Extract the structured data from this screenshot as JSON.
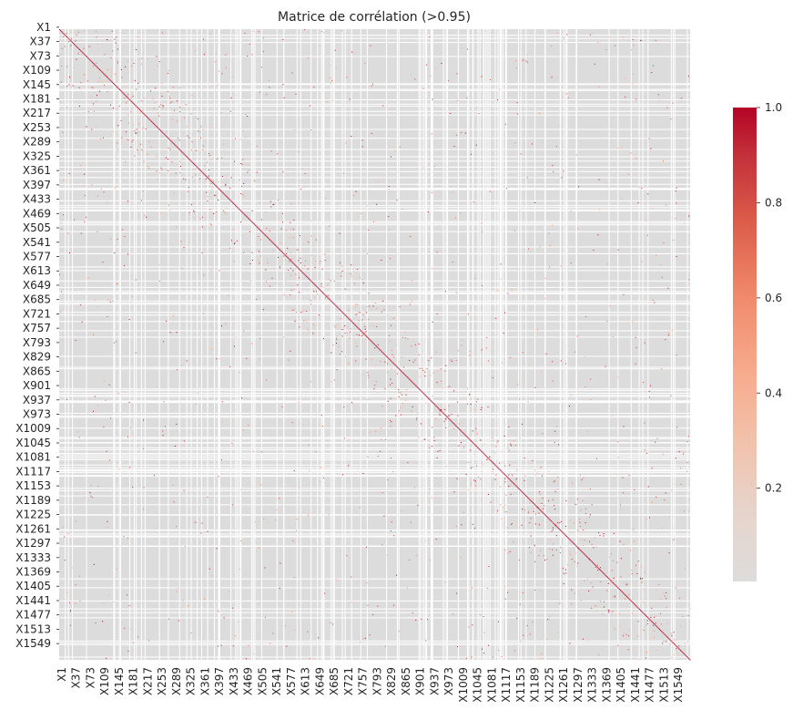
{
  "chart_data": {
    "type": "heatmap",
    "title": "Matrice de corrélation (>0.95)",
    "xlabel": "",
    "ylabel": "",
    "n_variables": 1573,
    "row_tick_labels": [
      "X1",
      "X37",
      "X73",
      "X109",
      "X145",
      "X181",
      "X217",
      "X253",
      "X289",
      "X325",
      "X361",
      "X397",
      "X433",
      "X469",
      "X505",
      "X541",
      "X577",
      "X613",
      "X649",
      "X685",
      "X721",
      "X757",
      "X793",
      "X829",
      "X865",
      "X901",
      "X937",
      "X973",
      "X1009",
      "X1045",
      "X1081",
      "X1117",
      "X1153",
      "X1189",
      "X1225",
      "X1261",
      "X1297",
      "X1333",
      "X1369",
      "X1405",
      "X1441",
      "X1477",
      "X1513",
      "X1549"
    ],
    "col_tick_labels": [
      "X1",
      "X37",
      "X73",
      "X109",
      "X145",
      "X181",
      "X217",
      "X253",
      "X289",
      "X325",
      "X361",
      "X397",
      "X433",
      "X469",
      "X505",
      "X541",
      "X577",
      "X613",
      "X649",
      "X685",
      "X721",
      "X757",
      "X793",
      "X829",
      "X865",
      "X901",
      "X937",
      "X973",
      "X1009",
      "X1045",
      "X1081",
      "X1117",
      "X1153",
      "X1189",
      "X1225",
      "X1261",
      "X1297",
      "X1333",
      "X1369",
      "X1405",
      "X1441",
      "X1477",
      "X1513",
      "X1549"
    ],
    "colorbar": {
      "min": 0.0,
      "max": 1.0,
      "ticks": [
        "0.2",
        "0.4",
        "0.6",
        "0.8",
        "1.0"
      ],
      "tick_values": [
        0.2,
        0.4,
        0.6,
        0.8,
        1.0
      ],
      "colormap": "coolwarm"
    },
    "colors": {
      "background_cell": "#dddcdc",
      "low": "#dddcdc",
      "mid": "#f4a383",
      "high": "#b40426",
      "grid_gap": "#ffffff"
    },
    "diagonal_value": 1.0,
    "threshold": 0.95
  }
}
